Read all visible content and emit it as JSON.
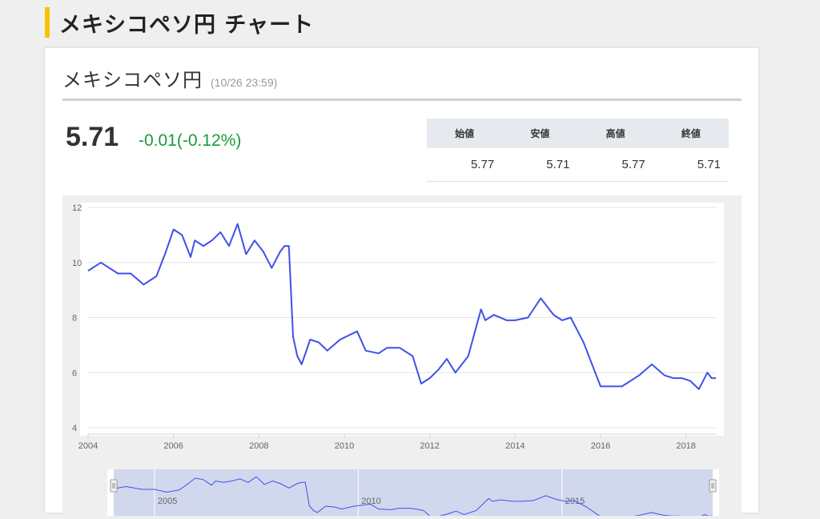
{
  "page": {
    "heading": "メキシコペソ円 チャート"
  },
  "card": {
    "title": "メキシコペソ円",
    "timestamp": "(10/26 23:59)"
  },
  "quote": {
    "price": "5.71",
    "change": "-0.01(-0.12%)"
  },
  "ohlc": {
    "headers": [
      "始値",
      "安値",
      "高値",
      "終値"
    ],
    "values": [
      "5.77",
      "5.71",
      "5.77",
      "5.71"
    ]
  },
  "colors": {
    "accent": "#f5c400",
    "line": "#3f51e9",
    "up_down": "#1a9a3c",
    "navigator_fill": "#c9d1ea"
  },
  "chart_data": {
    "type": "line",
    "series": [
      {
        "x": [
          2004.0,
          2004.3,
          2004.7,
          2005.0,
          2005.3,
          2005.6,
          2005.8,
          2006.0,
          2006.2,
          2006.4,
          2006.5,
          2006.7,
          2006.9,
          2007.1,
          2007.3,
          2007.5,
          2007.7,
          2007.9,
          2008.1,
          2008.3,
          2008.5,
          2008.6,
          2008.7,
          2008.75,
          2008.8,
          2008.9,
          2009.0,
          2009.2,
          2009.4,
          2009.6,
          2009.9,
          2010.3,
          2010.5,
          2010.8,
          2011.0,
          2011.3,
          2011.6,
          2011.8,
          2012.0,
          2012.2,
          2012.4,
          2012.6,
          2012.9,
          2013.2,
          2013.3,
          2013.5,
          2013.8,
          2014.0,
          2014.3,
          2014.6,
          2014.9,
          2015.1,
          2015.3,
          2015.6,
          2015.8,
          2016.0,
          2016.3,
          2016.5,
          2016.7,
          2016.9,
          2017.2,
          2017.5,
          2017.7,
          2017.9,
          2018.1,
          2018.3,
          2018.5,
          2018.6,
          2018.7
        ],
        "y": [
          9.7,
          10.0,
          9.6,
          9.6,
          9.2,
          9.5,
          10.3,
          11.2,
          11.0,
          10.2,
          10.8,
          10.6,
          10.8,
          11.1,
          10.6,
          11.4,
          10.3,
          10.8,
          10.4,
          9.8,
          10.4,
          10.6,
          10.6,
          9.0,
          7.3,
          6.6,
          6.3,
          7.2,
          7.1,
          6.8,
          7.2,
          7.5,
          6.8,
          6.7,
          6.9,
          6.9,
          6.6,
          5.6,
          5.8,
          6.1,
          6.5,
          6.0,
          6.6,
          8.3,
          7.9,
          8.1,
          7.9,
          7.9,
          8.0,
          8.7,
          8.1,
          7.9,
          8.0,
          7.1,
          6.3,
          5.5,
          5.5,
          5.5,
          5.7,
          5.9,
          6.3,
          5.9,
          5.8,
          5.8,
          5.7,
          5.4,
          6.0,
          5.8,
          5.8
        ]
      }
    ],
    "xlim": [
      2004,
      2018.7
    ],
    "ylim": [
      4,
      12
    ],
    "xticks": [
      "2004",
      "2006",
      "2008",
      "2010",
      "2012",
      "2014",
      "2016",
      "2018"
    ],
    "xtick_values": [
      2004,
      2006,
      2008,
      2010,
      2012,
      2014,
      2016,
      2018
    ],
    "yticks": [
      "4",
      "6",
      "8",
      "10",
      "12"
    ],
    "ytick_values": [
      4,
      6,
      8,
      10,
      12
    ],
    "navigator_ticks": [
      "2005",
      "2010",
      "2015"
    ],
    "navigator_tick_values": [
      2005,
      2010,
      2015
    ],
    "grid": true
  }
}
